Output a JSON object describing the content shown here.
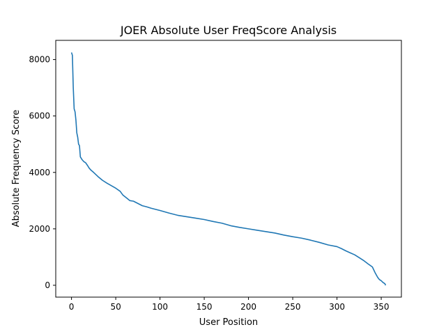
{
  "chart_data": {
    "type": "line",
    "title": "JOER Absolute User FreqScore Analysis",
    "xlabel": "User Position",
    "ylabel": "Absolute Frequency Score",
    "xlim": [
      -17.8,
      372.8
    ],
    "ylim": [
      -420,
      8680
    ],
    "xticks": [
      0,
      50,
      100,
      150,
      200,
      250,
      300,
      350
    ],
    "yticks": [
      0,
      2000,
      4000,
      6000,
      8000
    ],
    "grid": false,
    "legend": "none",
    "series": [
      {
        "color": "#1f77b4",
        "x": [
          0,
          1,
          2,
          3,
          4,
          5,
          6,
          7,
          8,
          9,
          10,
          12,
          14,
          16,
          18,
          20,
          22,
          25,
          30,
          35,
          40,
          45,
          50,
          55,
          58,
          62,
          66,
          70,
          75,
          80,
          85,
          90,
          100,
          110,
          120,
          130,
          140,
          150,
          160,
          170,
          180,
          190,
          200,
          210,
          220,
          230,
          240,
          250,
          260,
          270,
          280,
          290,
          300,
          305,
          310,
          315,
          320,
          325,
          330,
          335,
          340,
          343,
          346,
          348,
          350,
          352,
          354,
          355
        ],
        "y": [
          8250,
          8150,
          7000,
          6250,
          6150,
          5850,
          5400,
          5250,
          5000,
          4950,
          4550,
          4450,
          4380,
          4340,
          4250,
          4150,
          4080,
          4000,
          3850,
          3720,
          3620,
          3530,
          3440,
          3330,
          3200,
          3100,
          3000,
          2980,
          2900,
          2820,
          2780,
          2730,
          2650,
          2560,
          2480,
          2430,
          2380,
          2330,
          2260,
          2200,
          2110,
          2050,
          2000,
          1950,
          1900,
          1850,
          1780,
          1720,
          1670,
          1600,
          1520,
          1430,
          1370,
          1300,
          1220,
          1150,
          1080,
          980,
          880,
          760,
          650,
          450,
          280,
          200,
          160,
          100,
          60,
          0
        ]
      }
    ]
  }
}
